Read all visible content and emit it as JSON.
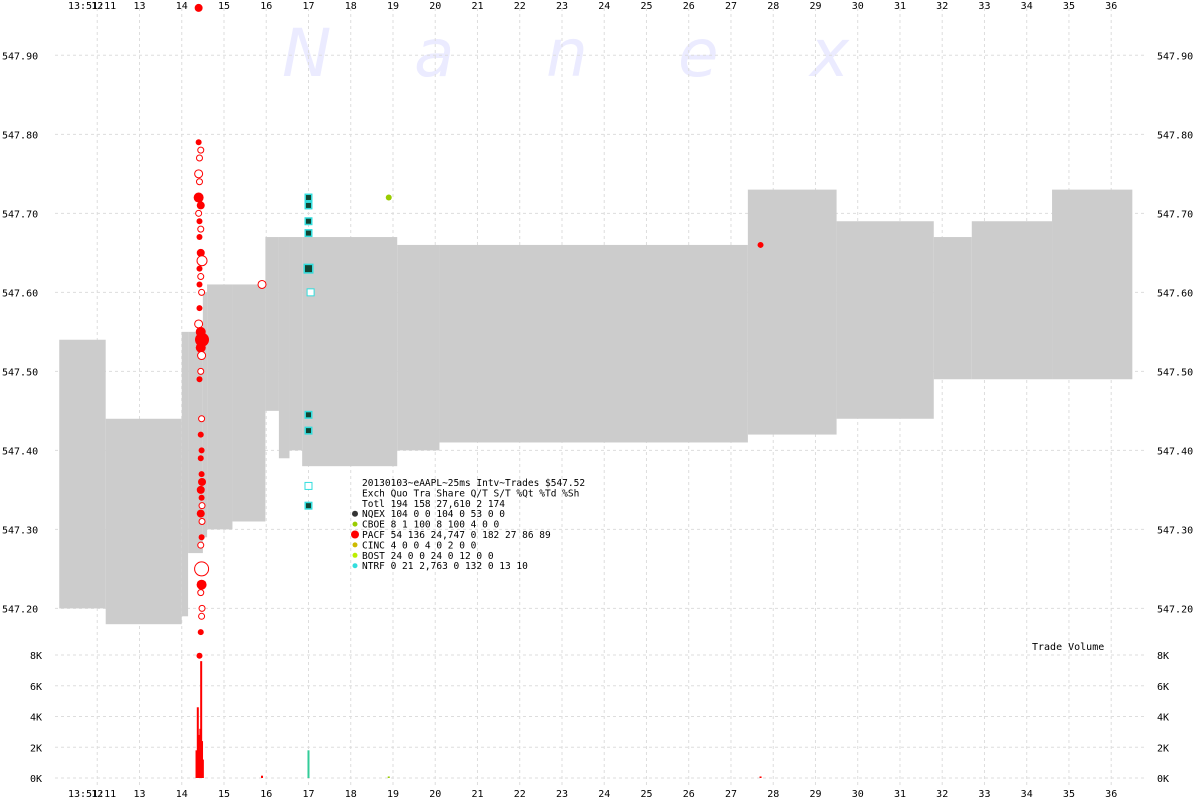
{
  "chart_data": {
    "type": "scatter",
    "watermark": "Nanex",
    "time_start_label": "13:51:11",
    "x_ticks": [
      12,
      13,
      14,
      15,
      16,
      17,
      18,
      19,
      20,
      21,
      22,
      23,
      24,
      25,
      26,
      27,
      28,
      29,
      30,
      31,
      32,
      33,
      34,
      35,
      36
    ],
    "x_range": [
      11.0,
      36.8
    ],
    "price_ylim": [
      547.16,
      547.97
    ],
    "price_ticks": [
      "547.20",
      "547.30",
      "547.40",
      "547.50",
      "547.60",
      "547.70",
      "547.80",
      "547.90"
    ],
    "volume_ylim": [
      0,
      8000
    ],
    "volume_ticks": [
      {
        "value": 0,
        "label": "0K"
      },
      {
        "value": 2000,
        "label": "2K"
      },
      {
        "value": 4000,
        "label": "4K"
      },
      {
        "value": 6000,
        "label": "6K"
      },
      {
        "value": 8000,
        "label": "8K"
      }
    ],
    "volume_label": "Trade Volume",
    "nbbo_bands": [
      {
        "x0": 11.1,
        "x1": 12.2,
        "bid": 547.2,
        "ask": 547.54
      },
      {
        "x0": 12.2,
        "x1": 14.0,
        "bid": 547.18,
        "ask": 547.44
      },
      {
        "x0": 14.0,
        "x1": 14.15,
        "bid": 547.19,
        "ask": 547.55
      },
      {
        "x0": 14.15,
        "x1": 14.5,
        "bid": 547.27,
        "ask": 547.55
      },
      {
        "x0": 14.5,
        "x1": 14.6,
        "bid": 547.29,
        "ask": 547.6
      },
      {
        "x0": 14.6,
        "x1": 15.2,
        "bid": 547.3,
        "ask": 547.61
      },
      {
        "x0": 15.2,
        "x1": 15.98,
        "bid": 547.31,
        "ask": 547.61
      },
      {
        "x0": 15.98,
        "x1": 16.3,
        "bid": 547.45,
        "ask": 547.67
      },
      {
        "x0": 16.3,
        "x1": 16.55,
        "bid": 547.39,
        "ask": 547.67
      },
      {
        "x0": 16.55,
        "x1": 16.85,
        "bid": 547.4,
        "ask": 547.67
      },
      {
        "x0": 16.85,
        "x1": 19.1,
        "bid": 547.38,
        "ask": 547.67
      },
      {
        "x0": 19.1,
        "x1": 20.1,
        "bid": 547.4,
        "ask": 547.66
      },
      {
        "x0": 20.1,
        "x1": 27.4,
        "bid": 547.41,
        "ask": 547.66
      },
      {
        "x0": 27.4,
        "x1": 29.5,
        "bid": 547.42,
        "ask": 547.73
      },
      {
        "x0": 29.5,
        "x1": 31.8,
        "bid": 547.44,
        "ask": 547.69
      },
      {
        "x0": 31.8,
        "x1": 32.7,
        "bid": 547.49,
        "ask": 547.67
      },
      {
        "x0": 32.7,
        "x1": 34.6,
        "bid": 547.49,
        "ask": 547.69
      },
      {
        "x0": 34.6,
        "x1": 36.5,
        "bid": 547.49,
        "ask": 547.73
      }
    ],
    "series": [
      {
        "name": "PACF",
        "color": "#ff0000",
        "marker": "circle",
        "trades": [
          {
            "x": 14.4,
            "y": 547.96,
            "size": 4
          },
          {
            "x": 14.4,
            "y": 547.79,
            "size": 3
          },
          {
            "x": 14.45,
            "y": 547.78,
            "size": 3,
            "open": true
          },
          {
            "x": 14.42,
            "y": 547.77,
            "size": 3,
            "open": true
          },
          {
            "x": 14.4,
            "y": 547.75,
            "size": 4,
            "open": true
          },
          {
            "x": 14.42,
            "y": 547.74,
            "size": 3,
            "open": true
          },
          {
            "x": 14.4,
            "y": 547.72,
            "size": 5
          },
          {
            "x": 14.45,
            "y": 547.71,
            "size": 4
          },
          {
            "x": 14.4,
            "y": 547.7,
            "size": 3,
            "open": true
          },
          {
            "x": 14.42,
            "y": 547.69,
            "size": 3
          },
          {
            "x": 14.45,
            "y": 547.68,
            "size": 3,
            "open": true
          },
          {
            "x": 14.42,
            "y": 547.67,
            "size": 3
          },
          {
            "x": 14.45,
            "y": 547.65,
            "size": 4
          },
          {
            "x": 14.48,
            "y": 547.64,
            "size": 5,
            "open": true
          },
          {
            "x": 14.42,
            "y": 547.63,
            "size": 3
          },
          {
            "x": 14.45,
            "y": 547.62,
            "size": 3,
            "open": true
          },
          {
            "x": 14.42,
            "y": 547.61,
            "size": 3
          },
          {
            "x": 14.47,
            "y": 547.6,
            "size": 3,
            "open": true
          },
          {
            "x": 14.42,
            "y": 547.58,
            "size": 3
          },
          {
            "x": 14.4,
            "y": 547.56,
            "size": 4,
            "open": true
          },
          {
            "x": 14.45,
            "y": 547.55,
            "size": 5
          },
          {
            "x": 14.48,
            "y": 547.54,
            "size": 7
          },
          {
            "x": 14.45,
            "y": 547.53,
            "size": 5
          },
          {
            "x": 14.47,
            "y": 547.52,
            "size": 4,
            "open": true
          },
          {
            "x": 14.45,
            "y": 547.5,
            "size": 3,
            "open": true
          },
          {
            "x": 14.42,
            "y": 547.49,
            "size": 3
          },
          {
            "x": 14.47,
            "y": 547.44,
            "size": 3,
            "open": true
          },
          {
            "x": 14.45,
            "y": 547.42,
            "size": 3
          },
          {
            "x": 14.47,
            "y": 547.4,
            "size": 3
          },
          {
            "x": 14.45,
            "y": 547.39,
            "size": 3
          },
          {
            "x": 14.47,
            "y": 547.37,
            "size": 3
          },
          {
            "x": 14.48,
            "y": 547.36,
            "size": 4
          },
          {
            "x": 14.45,
            "y": 547.35,
            "size": 4
          },
          {
            "x": 14.47,
            "y": 547.34,
            "size": 3
          },
          {
            "x": 14.48,
            "y": 547.33,
            "size": 3,
            "open": true
          },
          {
            "x": 14.45,
            "y": 547.32,
            "size": 4
          },
          {
            "x": 14.48,
            "y": 547.31,
            "size": 3,
            "open": true
          },
          {
            "x": 14.47,
            "y": 547.29,
            "size": 3
          },
          {
            "x": 14.45,
            "y": 547.28,
            "size": 3,
            "open": true
          },
          {
            "x": 14.47,
            "y": 547.25,
            "size": 7,
            "open": true
          },
          {
            "x": 14.47,
            "y": 547.23,
            "size": 5
          },
          {
            "x": 14.45,
            "y": 547.22,
            "size": 3,
            "open": true
          },
          {
            "x": 14.48,
            "y": 547.2,
            "size": 3,
            "open": true
          },
          {
            "x": 14.47,
            "y": 547.19,
            "size": 3,
            "open": true
          },
          {
            "x": 14.45,
            "y": 547.17,
            "size": 3
          },
          {
            "x": 14.42,
            "y": 547.14,
            "size": 3
          },
          {
            "x": 15.9,
            "y": 547.61,
            "size": 4,
            "open": true
          },
          {
            "x": 27.7,
            "y": 547.66,
            "size": 3
          }
        ]
      },
      {
        "name": "CBOE",
        "color": "#99cc00",
        "marker": "circle",
        "trades": [
          {
            "x": 18.9,
            "y": 547.72,
            "size": 3
          }
        ]
      },
      {
        "name": "NTRF",
        "color": "#33dddd",
        "marker": "square",
        "trades": [
          {
            "x": 17.0,
            "y": 547.72,
            "size": 4,
            "dark": true
          },
          {
            "x": 17.0,
            "y": 547.71,
            "size": 4,
            "dark": true
          },
          {
            "x": 17.0,
            "y": 547.69,
            "size": 4,
            "dark": true
          },
          {
            "x": 17.0,
            "y": 547.675,
            "size": 4,
            "dark": true
          },
          {
            "x": 17.0,
            "y": 547.63,
            "size": 5,
            "dark": true
          },
          {
            "x": 17.05,
            "y": 547.6,
            "size": 4,
            "open": true
          },
          {
            "x": 17.0,
            "y": 547.445,
            "size": 4,
            "dark": true
          },
          {
            "x": 17.0,
            "y": 547.425,
            "size": 4,
            "dark": true
          },
          {
            "x": 17.0,
            "y": 547.355,
            "size": 4,
            "open": true
          },
          {
            "x": 17.0,
            "y": 547.33,
            "size": 4,
            "dark": true
          }
        ]
      }
    ],
    "volume_spikes": [
      {
        "x": 14.35,
        "v": 1800,
        "color": "#ff0000"
      },
      {
        "x": 14.38,
        "v": 4600,
        "color": "#ff0000"
      },
      {
        "x": 14.41,
        "v": 2800,
        "color": "#ff0000"
      },
      {
        "x": 14.44,
        "v": 3200,
        "color": "#ff0000"
      },
      {
        "x": 14.46,
        "v": 7600,
        "color": "#ff0000"
      },
      {
        "x": 14.48,
        "v": 2400,
        "color": "#ff0000"
      },
      {
        "x": 14.5,
        "v": 1200,
        "color": "#ff0000"
      },
      {
        "x": 15.9,
        "v": 150,
        "color": "#ff0000"
      },
      {
        "x": 17.0,
        "v": 1800,
        "color": "#33cc99"
      },
      {
        "x": 18.9,
        "v": 100,
        "color": "#99cc00"
      },
      {
        "x": 27.7,
        "v": 100,
        "color": "#ff0000"
      }
    ],
    "legend": {
      "title": "20130103~eAAPL~25ms Intv~Trades $547.52",
      "header": "Exch Quo Tra  Share  Q/T   S/T  %Qt %Td %Sh",
      "total": "Totl 194 158 27,610    2   174",
      "rows": [
        {
          "color": "#333333",
          "size": 3,
          "text": "NQEX 104   0      0  104     0  53   0   0"
        },
        {
          "color": "#99cc00",
          "size": 2.5,
          "text": "CBOE   8   1    100    8   100   4   0   0"
        },
        {
          "color": "#ff0000",
          "size": 4,
          "text": "PACF  54 136 24,747    0   182  27  86  89"
        },
        {
          "color": "#ccbb00",
          "size": 2.5,
          "text": "CINC   4   0      0    4     0   2   0   0"
        },
        {
          "color": "#bbee00",
          "size": 2.5,
          "text": "BOST  24   0      0   24     0  12   0   0"
        },
        {
          "color": "#33dddd",
          "size": 2.5,
          "text": "NTRF   0  21  2,763    0   132   0  13  10"
        }
      ]
    }
  }
}
